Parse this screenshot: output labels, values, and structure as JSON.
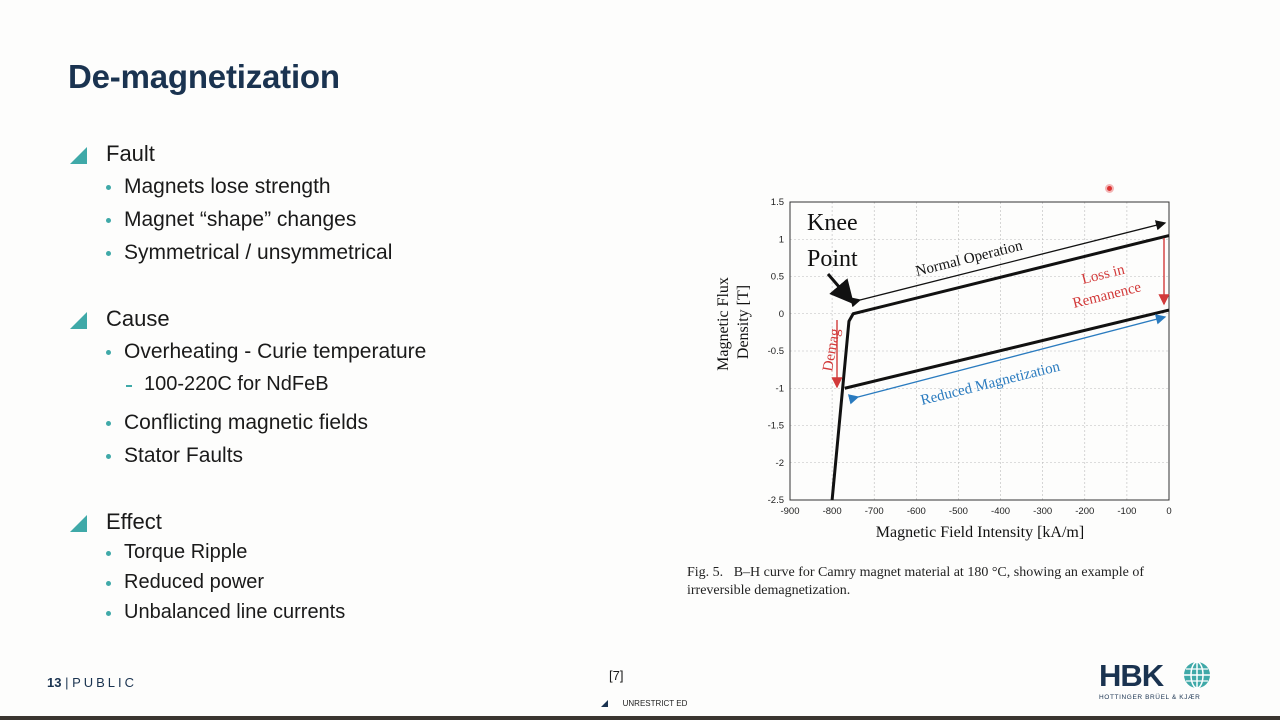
{
  "slide": {
    "title": "De-magnetization",
    "sections": [
      {
        "heading": "Fault",
        "items": [
          {
            "text": "Magnets lose strength"
          },
          {
            "text": "Magnet “shape” changes"
          },
          {
            "text": "Symmetrical / unsymmetrical"
          }
        ]
      },
      {
        "heading": "Cause",
        "items": [
          {
            "text": "Overheating - Curie temperature",
            "sub": "100-220C for NdFeB"
          },
          {
            "text": "Conflicting magnetic fields"
          },
          {
            "text": "Stator Faults"
          }
        ]
      },
      {
        "heading": "Effect",
        "items": [
          {
            "text": "Torque Ripple"
          },
          {
            "text": "Reduced power"
          },
          {
            "text": "Unbalanced line currents"
          }
        ]
      }
    ],
    "footer": {
      "page_number": "13",
      "classification": "PUBLIC",
      "reference": "[7]",
      "unrestricted": "UNRESTRICT ED"
    },
    "logo": {
      "text": "HBK",
      "subtitle": "HOTTINGER BRÜEL & KJÆR"
    },
    "colors": {
      "accent": "#3fa9a8",
      "title": "#1a3350",
      "red": "#d23a3a",
      "blue": "#2a7bbf"
    }
  },
  "figure": {
    "caption_prefix": "Fig. 5.",
    "caption_text": "B–H curve for Camry magnet material at 180 °C, showing an example of irreversible demagnetization.",
    "annotations": {
      "knee": "Knee",
      "point": "Point",
      "normal": "Normal Operation",
      "loss1": "Loss in",
      "loss2": "Remanence",
      "demag": "Demag",
      "reduced": "Reduced Magnetization"
    }
  },
  "chart_data": {
    "type": "line",
    "title": "",
    "xlabel": "Magnetic Field Intensity [kA/m]",
    "ylabel": "Magnetic Flux Density [T]",
    "xlim": [
      -900,
      0
    ],
    "ylim": [
      -2.5,
      1.5
    ],
    "xticks": [
      -900,
      -800,
      -700,
      -600,
      -500,
      -400,
      -300,
      -200,
      -100,
      0
    ],
    "yticks": [
      1.5,
      1,
      0.5,
      0,
      -0.5,
      -1,
      -1.5,
      -2,
      -2.5
    ],
    "grid": true,
    "series": [
      {
        "x": [
          0,
          -750,
          -760,
          -800
        ],
        "y": [
          1.05,
          0.0,
          -0.1,
          -2.5
        ]
      },
      {
        "x": [
          0,
          -770
        ],
        "y": [
          0.05,
          -1.0
        ]
      }
    ]
  }
}
